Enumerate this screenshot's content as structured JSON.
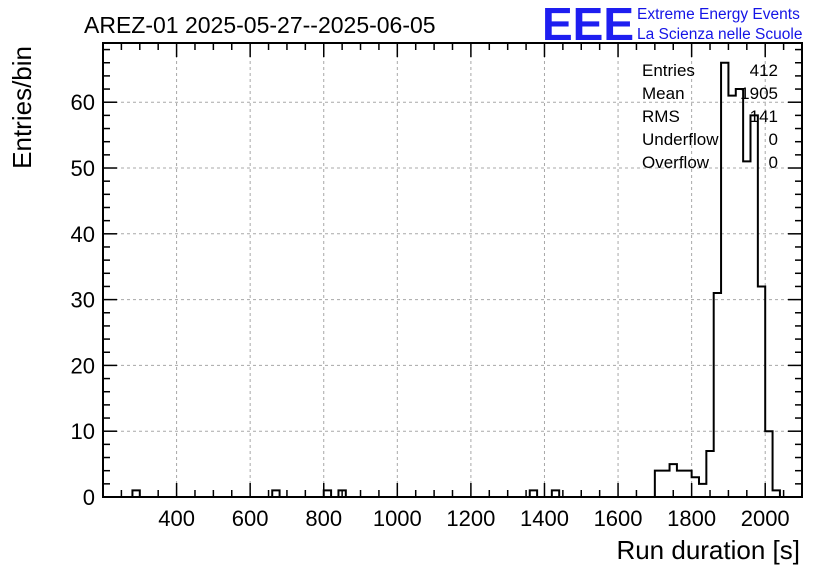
{
  "chart_data": {
    "type": "histogram",
    "title": "AREZ-01 2025-05-27--2025-06-05",
    "xlabel": "Run duration [s]",
    "ylabel": "Entries/bin",
    "xlim": [
      200,
      2100
    ],
    "ylim": [
      0,
      69
    ],
    "x_ticks": [
      400,
      600,
      800,
      1000,
      1200,
      1400,
      1600,
      1800,
      2000
    ],
    "y_ticks": [
      0,
      10,
      20,
      30,
      40,
      50,
      60
    ],
    "grid": true,
    "bin_width": 20,
    "bins": [
      {
        "x": 280,
        "count": 1
      },
      {
        "x": 660,
        "count": 1
      },
      {
        "x": 800,
        "count": 1
      },
      {
        "x": 840,
        "count": 1
      },
      {
        "x": 1360,
        "count": 1
      },
      {
        "x": 1420,
        "count": 1
      },
      {
        "x": 1700,
        "count": 4
      },
      {
        "x": 1720,
        "count": 4
      },
      {
        "x": 1740,
        "count": 5
      },
      {
        "x": 1760,
        "count": 4
      },
      {
        "x": 1780,
        "count": 4
      },
      {
        "x": 1800,
        "count": 3
      },
      {
        "x": 1820,
        "count": 2
      },
      {
        "x": 1840,
        "count": 7
      },
      {
        "x": 1860,
        "count": 31
      },
      {
        "x": 1880,
        "count": 66
      },
      {
        "x": 1900,
        "count": 61
      },
      {
        "x": 1920,
        "count": 62
      },
      {
        "x": 1940,
        "count": 51
      },
      {
        "x": 1960,
        "count": 58
      },
      {
        "x": 1980,
        "count": 32
      },
      {
        "x": 2000,
        "count": 10
      },
      {
        "x": 2020,
        "count": 1
      }
    ],
    "stats": [
      {
        "label": "Entries",
        "value": "412"
      },
      {
        "label": "Mean",
        "value": "1905"
      },
      {
        "label": "RMS",
        "value": "141"
      },
      {
        "label": "Underflow",
        "value": "0"
      },
      {
        "label": "Overflow",
        "value": "0"
      }
    ],
    "legend_position": "top-right"
  },
  "logo": {
    "mark": "EEE",
    "line1": "Extreme Energy Events",
    "line2": "La Scienza nelle Scuole",
    "color": "#1414e6"
  }
}
